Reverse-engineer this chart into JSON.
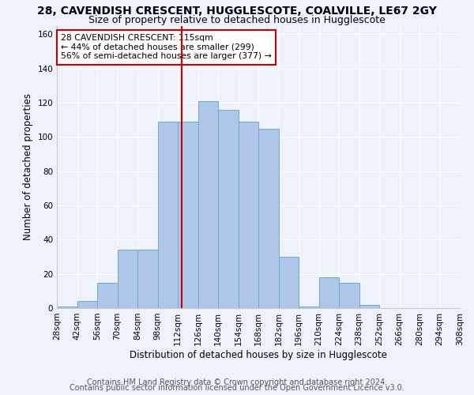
{
  "title": "28, CAVENDISH CRESCENT, HUGGLESCOTE, COALVILLE, LE67 2GY",
  "subtitle": "Size of property relative to detached houses in Hugglescote",
  "xlabel": "Distribution of detached houses by size in Hugglescote",
  "ylabel": "Number of detached properties",
  "footer1": "Contains HM Land Registry data © Crown copyright and database right 2024.",
  "footer2": "Contains public sector information licensed under the Open Government Licence v3.0.",
  "bin_edges": [
    28,
    42,
    56,
    70,
    84,
    98,
    112,
    126,
    140,
    154,
    168,
    182,
    196,
    210,
    224,
    238,
    252,
    266,
    280,
    294,
    308
  ],
  "bar_heights": [
    1,
    4,
    15,
    34,
    34,
    109,
    109,
    121,
    116,
    109,
    105,
    30,
    1,
    18,
    15,
    2,
    0,
    0,
    0,
    0
  ],
  "bar_color": "#aec6e8",
  "bar_edge_color": "#6fa8d4",
  "property_size": 115,
  "vline_color": "#cc0000",
  "annotation_line1": "28 CAVENDISH CRESCENT: 115sqm",
  "annotation_line2": "← 44% of detached houses are smaller (299)",
  "annotation_line3": "56% of semi-detached houses are larger (377) →",
  "annotation_box_color": "#ffffff",
  "annotation_box_edge_color": "#cc0000",
  "ylim": [
    0,
    165
  ],
  "yticks": [
    0,
    20,
    40,
    60,
    80,
    100,
    120,
    140,
    160
  ],
  "background_color": "#eef2fb",
  "grid_color": "#ffffff",
  "title_fontsize": 10,
  "subtitle_fontsize": 9,
  "axis_fontsize": 8.5,
  "tick_fontsize": 7.5,
  "annotation_fontsize": 7.8,
  "footer_fontsize": 7
}
